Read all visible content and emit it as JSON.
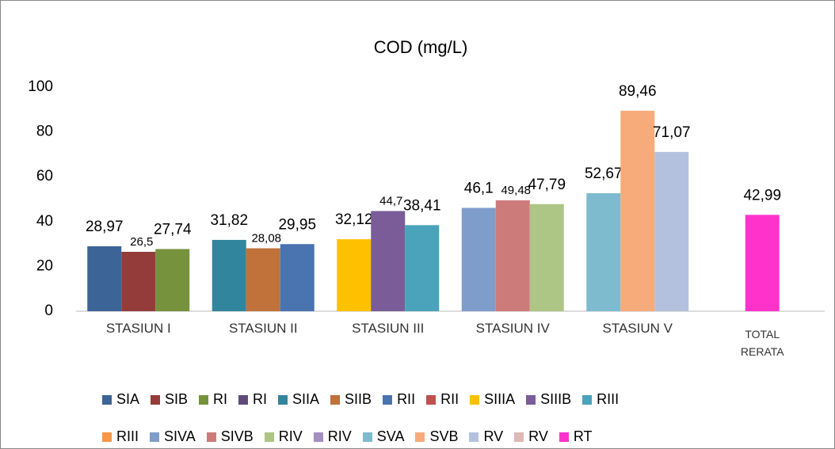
{
  "chart_data": {
    "type": "bar",
    "title": "COD  (mg/L)",
    "categories": [
      "STASIUN I",
      "STASIUN II",
      "STASIUN III",
      "STASIUN IV",
      "STASIUN V",
      "TOTAL RERATA"
    ],
    "ylim": [
      0,
      100
    ],
    "yticks": [
      0,
      20,
      40,
      60,
      80,
      100
    ],
    "grid": false,
    "series": [
      {
        "name": "SIA",
        "color": "#3c6496",
        "values": [
          28.97,
          null,
          null,
          null,
          null,
          null
        ],
        "value_labels": [
          "28,97",
          null,
          null,
          null,
          null,
          null
        ]
      },
      {
        "name": "SIB",
        "color": "#943c3a",
        "values": [
          26.5,
          null,
          null,
          null,
          null,
          null
        ],
        "value_labels": [
          "26,5",
          null,
          null,
          null,
          null,
          null
        ]
      },
      {
        "name": "RI",
        "color": "#77923c",
        "values": [
          27.74,
          null,
          null,
          null,
          null,
          null
        ],
        "value_labels": [
          "27,74",
          null,
          null,
          null,
          null,
          null
        ]
      },
      {
        "name": "RI",
        "color": "#604a7b",
        "values": [
          null,
          null,
          null,
          null,
          null,
          null
        ]
      },
      {
        "name": "SIIA",
        "color": "#31859c",
        "values": [
          null,
          31.82,
          null,
          null,
          null,
          null
        ],
        "value_labels": [
          null,
          "31,82",
          null,
          null,
          null,
          null
        ]
      },
      {
        "name": "SIIB",
        "color": "#c0723a",
        "values": [
          null,
          28.08,
          null,
          null,
          null,
          null
        ],
        "value_labels": [
          null,
          "28,08",
          null,
          null,
          null,
          null
        ]
      },
      {
        "name": "RII",
        "color": "#4a74b0",
        "values": [
          null,
          29.95,
          null,
          null,
          null,
          null
        ],
        "value_labels": [
          null,
          "29,95",
          null,
          null,
          null,
          null
        ]
      },
      {
        "name": "RII",
        "color": "#c0504d",
        "values": [
          null,
          null,
          null,
          null,
          null,
          null
        ]
      },
      {
        "name": "SIIIA",
        "color": "#ffc000",
        "values": [
          null,
          null,
          32.12,
          null,
          null,
          null
        ],
        "value_labels": [
          null,
          null,
          "32,12",
          null,
          null,
          null
        ]
      },
      {
        "name": "SIIIB",
        "color": "#7a5c99",
        "values": [
          null,
          null,
          44.7,
          null,
          null,
          null
        ],
        "value_labels": [
          null,
          null,
          "44,7",
          null,
          null,
          null
        ]
      },
      {
        "name": "RIII",
        "color": "#4aa3bb",
        "values": [
          null,
          null,
          38.41,
          null,
          null,
          null
        ],
        "value_labels": [
          null,
          null,
          "38,41",
          null,
          null,
          null
        ]
      },
      {
        "name": "RIII",
        "color": "#f79646",
        "values": [
          null,
          null,
          null,
          null,
          null,
          null
        ]
      },
      {
        "name": "SIVA",
        "color": "#7f9dcb",
        "values": [
          null,
          null,
          null,
          46.1,
          null,
          null
        ],
        "value_labels": [
          null,
          null,
          null,
          "46,1",
          null,
          null
        ]
      },
      {
        "name": "SIVB",
        "color": "#cd7b7a",
        "values": [
          null,
          null,
          null,
          49.48,
          null,
          null
        ],
        "value_labels": [
          null,
          null,
          null,
          "49,48",
          null,
          null
        ]
      },
      {
        "name": "RIV",
        "color": "#adc585",
        "values": [
          null,
          null,
          null,
          47.79,
          null,
          null
        ],
        "value_labels": [
          null,
          null,
          null,
          "47,79",
          null,
          null
        ]
      },
      {
        "name": "RIV",
        "color": "#a38fc0",
        "values": [
          null,
          null,
          null,
          null,
          null,
          null
        ]
      },
      {
        "name": "SVA",
        "color": "#7ebbcf",
        "values": [
          null,
          null,
          null,
          null,
          52.67,
          null
        ],
        "value_labels": [
          null,
          null,
          null,
          null,
          "52,67",
          null
        ]
      },
      {
        "name": "SVB",
        "color": "#f8ab7a",
        "values": [
          null,
          null,
          null,
          null,
          89.46,
          null
        ],
        "value_labels": [
          null,
          null,
          null,
          null,
          "89,46",
          null
        ]
      },
      {
        "name": "RV",
        "color": "#b4c1de",
        "values": [
          null,
          null,
          null,
          null,
          71.07,
          null
        ],
        "value_labels": [
          null,
          null,
          null,
          null,
          "71,07",
          null
        ]
      },
      {
        "name": "RV",
        "color": "#ddb8b6",
        "values": [
          null,
          null,
          null,
          null,
          null,
          null
        ]
      },
      {
        "name": "RT",
        "color": "#ff33cc",
        "values": [
          null,
          null,
          null,
          null,
          null,
          42.99
        ],
        "value_labels": [
          null,
          null,
          null,
          null,
          null,
          "42,99"
        ]
      }
    ]
  }
}
